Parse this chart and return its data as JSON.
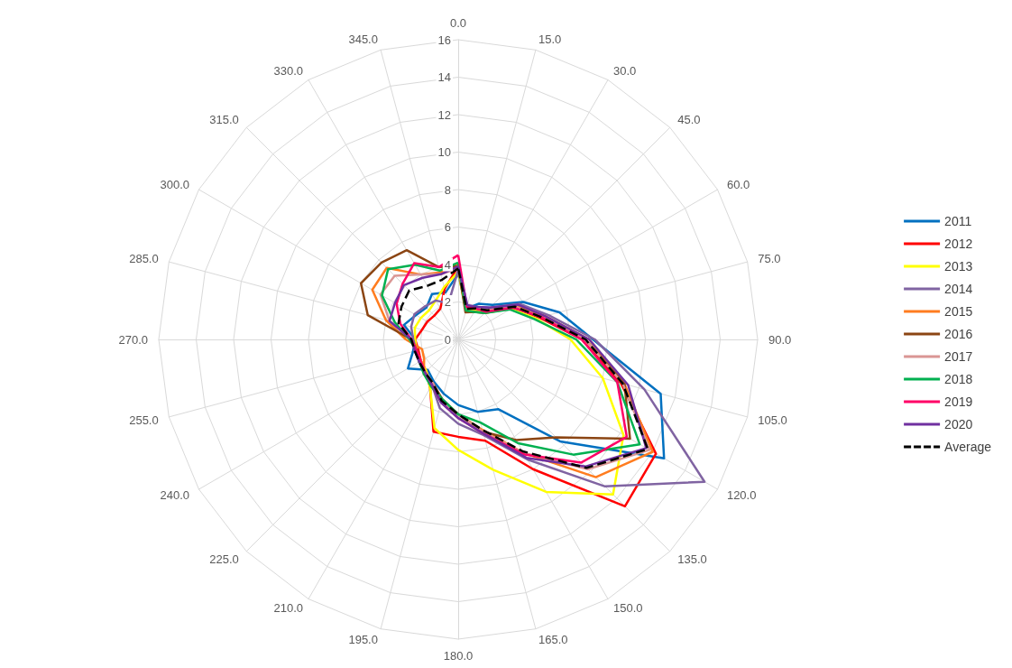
{
  "chart_data": {
    "type": "radar",
    "categories": [
      "0.0",
      "15.0",
      "30.0",
      "45.0",
      "60.0",
      "75.0",
      "90.0",
      "105.0",
      "120.0",
      "135.0",
      "150.0",
      "165.0",
      "180.0",
      "195.0",
      "210.0",
      "225.0",
      "240.0",
      "255.0",
      "270.0",
      "285.0",
      "300.0",
      "315.0",
      "330.0",
      "345.0"
    ],
    "ylim": [
      0,
      16
    ],
    "yticks": [
      0,
      2,
      4,
      6,
      8,
      10,
      12,
      14,
      16
    ],
    "grid": true,
    "legend": "right",
    "marker": "none",
    "line_style": "solid",
    "series": [
      {
        "name": "2011",
        "color": "#0070c0",
        "values": [
          3.5,
          1.7,
          2.2,
          2.6,
          4.0,
          5.6,
          7.2,
          11.2,
          12.7,
          7.7,
          4.3,
          4.0,
          3.5,
          3.0,
          2.6,
          2.3,
          3.1,
          2.5,
          2.3,
          3.0,
          2.6,
          2.4,
          2.8,
          2.6
        ]
      },
      {
        "name": "2012",
        "color": "#ff0000",
        "values": [
          3.9,
          1.6,
          1.9,
          2.1,
          3.4,
          4.5,
          6.6,
          9.0,
          12.2,
          12.6,
          8.0,
          5.6,
          5.2,
          5.1,
          3.0,
          2.4,
          2.3,
          2.2,
          2.3,
          2.0,
          1.9,
          1.8,
          1.9,
          2.8
        ]
      },
      {
        "name": "2013",
        "color": "#ffff00",
        "values": [
          3.6,
          1.6,
          1.8,
          2.0,
          3.3,
          4.3,
          6.0,
          8.0,
          10.2,
          11.7,
          9.4,
          7.2,
          5.9,
          4.9,
          3.0,
          2.4,
          2.3,
          2.3,
          2.3,
          2.4,
          2.3,
          2.2,
          2.4,
          2.9
        ]
      },
      {
        "name": "2014",
        "color": "#8064a2",
        "values": [
          3.7,
          1.8,
          2.0,
          2.4,
          3.8,
          5.0,
          7.3,
          10.3,
          15.2,
          11.1,
          7.4,
          5.3,
          4.5,
          3.8,
          2.8,
          2.5,
          2.4,
          2.3,
          2.4,
          2.6,
          2.7,
          2.5,
          2.4,
          2.0
        ]
      },
      {
        "name": "2015",
        "color": "#ff7c1f",
        "values": [
          4.0,
          1.8,
          1.9,
          2.2,
          3.6,
          4.8,
          7.0,
          9.2,
          12.0,
          10.4,
          7.0,
          5.0,
          4.0,
          3.4,
          2.7,
          2.6,
          2.1,
          2.0,
          2.8,
          4.0,
          5.3,
          5.4,
          4.0,
          3.7
        ]
      },
      {
        "name": "2016",
        "color": "#8b4513",
        "values": [
          3.9,
          1.5,
          1.7,
          2.0,
          3.4,
          4.6,
          6.8,
          9.2,
          10.6,
          7.4,
          6.2,
          5.1,
          4.0,
          3.3,
          2.7,
          2.5,
          2.4,
          2.3,
          2.5,
          5.0,
          6.0,
          5.8,
          5.5,
          4.0
        ]
      },
      {
        "name": "2017",
        "color": "#da9694",
        "values": [
          3.8,
          1.7,
          1.9,
          2.2,
          3.5,
          4.6,
          6.8,
          9.1,
          11.8,
          9.8,
          7.0,
          5.1,
          4.0,
          3.4,
          2.7,
          2.5,
          2.4,
          2.4,
          2.5,
          3.8,
          4.8,
          4.8,
          4.0,
          3.6
        ]
      },
      {
        "name": "2018",
        "color": "#00b050",
        "values": [
          4.1,
          1.6,
          1.7,
          2.0,
          3.2,
          4.2,
          6.3,
          8.8,
          11.2,
          8.7,
          6.4,
          4.6,
          4.0,
          3.3,
          2.9,
          2.6,
          2.4,
          2.3,
          2.6,
          3.5,
          4.7,
          5.3,
          4.6,
          3.8
        ]
      },
      {
        "name": "2019",
        "color": "#ff0066",
        "values": [
          4.5,
          1.8,
          1.9,
          2.1,
          3.4,
          4.6,
          6.6,
          8.8,
          10.4,
          9.3,
          7.1,
          5.2,
          4.2,
          3.5,
          2.8,
          2.5,
          2.3,
          2.3,
          2.5,
          3.2,
          3.8,
          4.2,
          4.7,
          4.0
        ]
      },
      {
        "name": "2020",
        "color": "#7030a0",
        "values": [
          3.9,
          1.9,
          2.0,
          2.4,
          3.7,
          4.8,
          7.0,
          9.4,
          11.6,
          9.6,
          7.3,
          5.2,
          4.2,
          3.5,
          2.8,
          2.5,
          2.4,
          2.4,
          2.5,
          3.8,
          3.9,
          4.1,
          3.8,
          3.6
        ]
      },
      {
        "name": "Average",
        "color": "#000000",
        "line_style": "dashed",
        "values": [
          3.8,
          1.7,
          1.9,
          2.2,
          3.5,
          4.6,
          6.8,
          9.1,
          11.7,
          9.7,
          6.9,
          5.0,
          4.0,
          3.4,
          2.7,
          2.5,
          2.4,
          2.4,
          2.5,
          3.3,
          3.5,
          3.7,
          3.3,
          3.3
        ]
      }
    ]
  }
}
